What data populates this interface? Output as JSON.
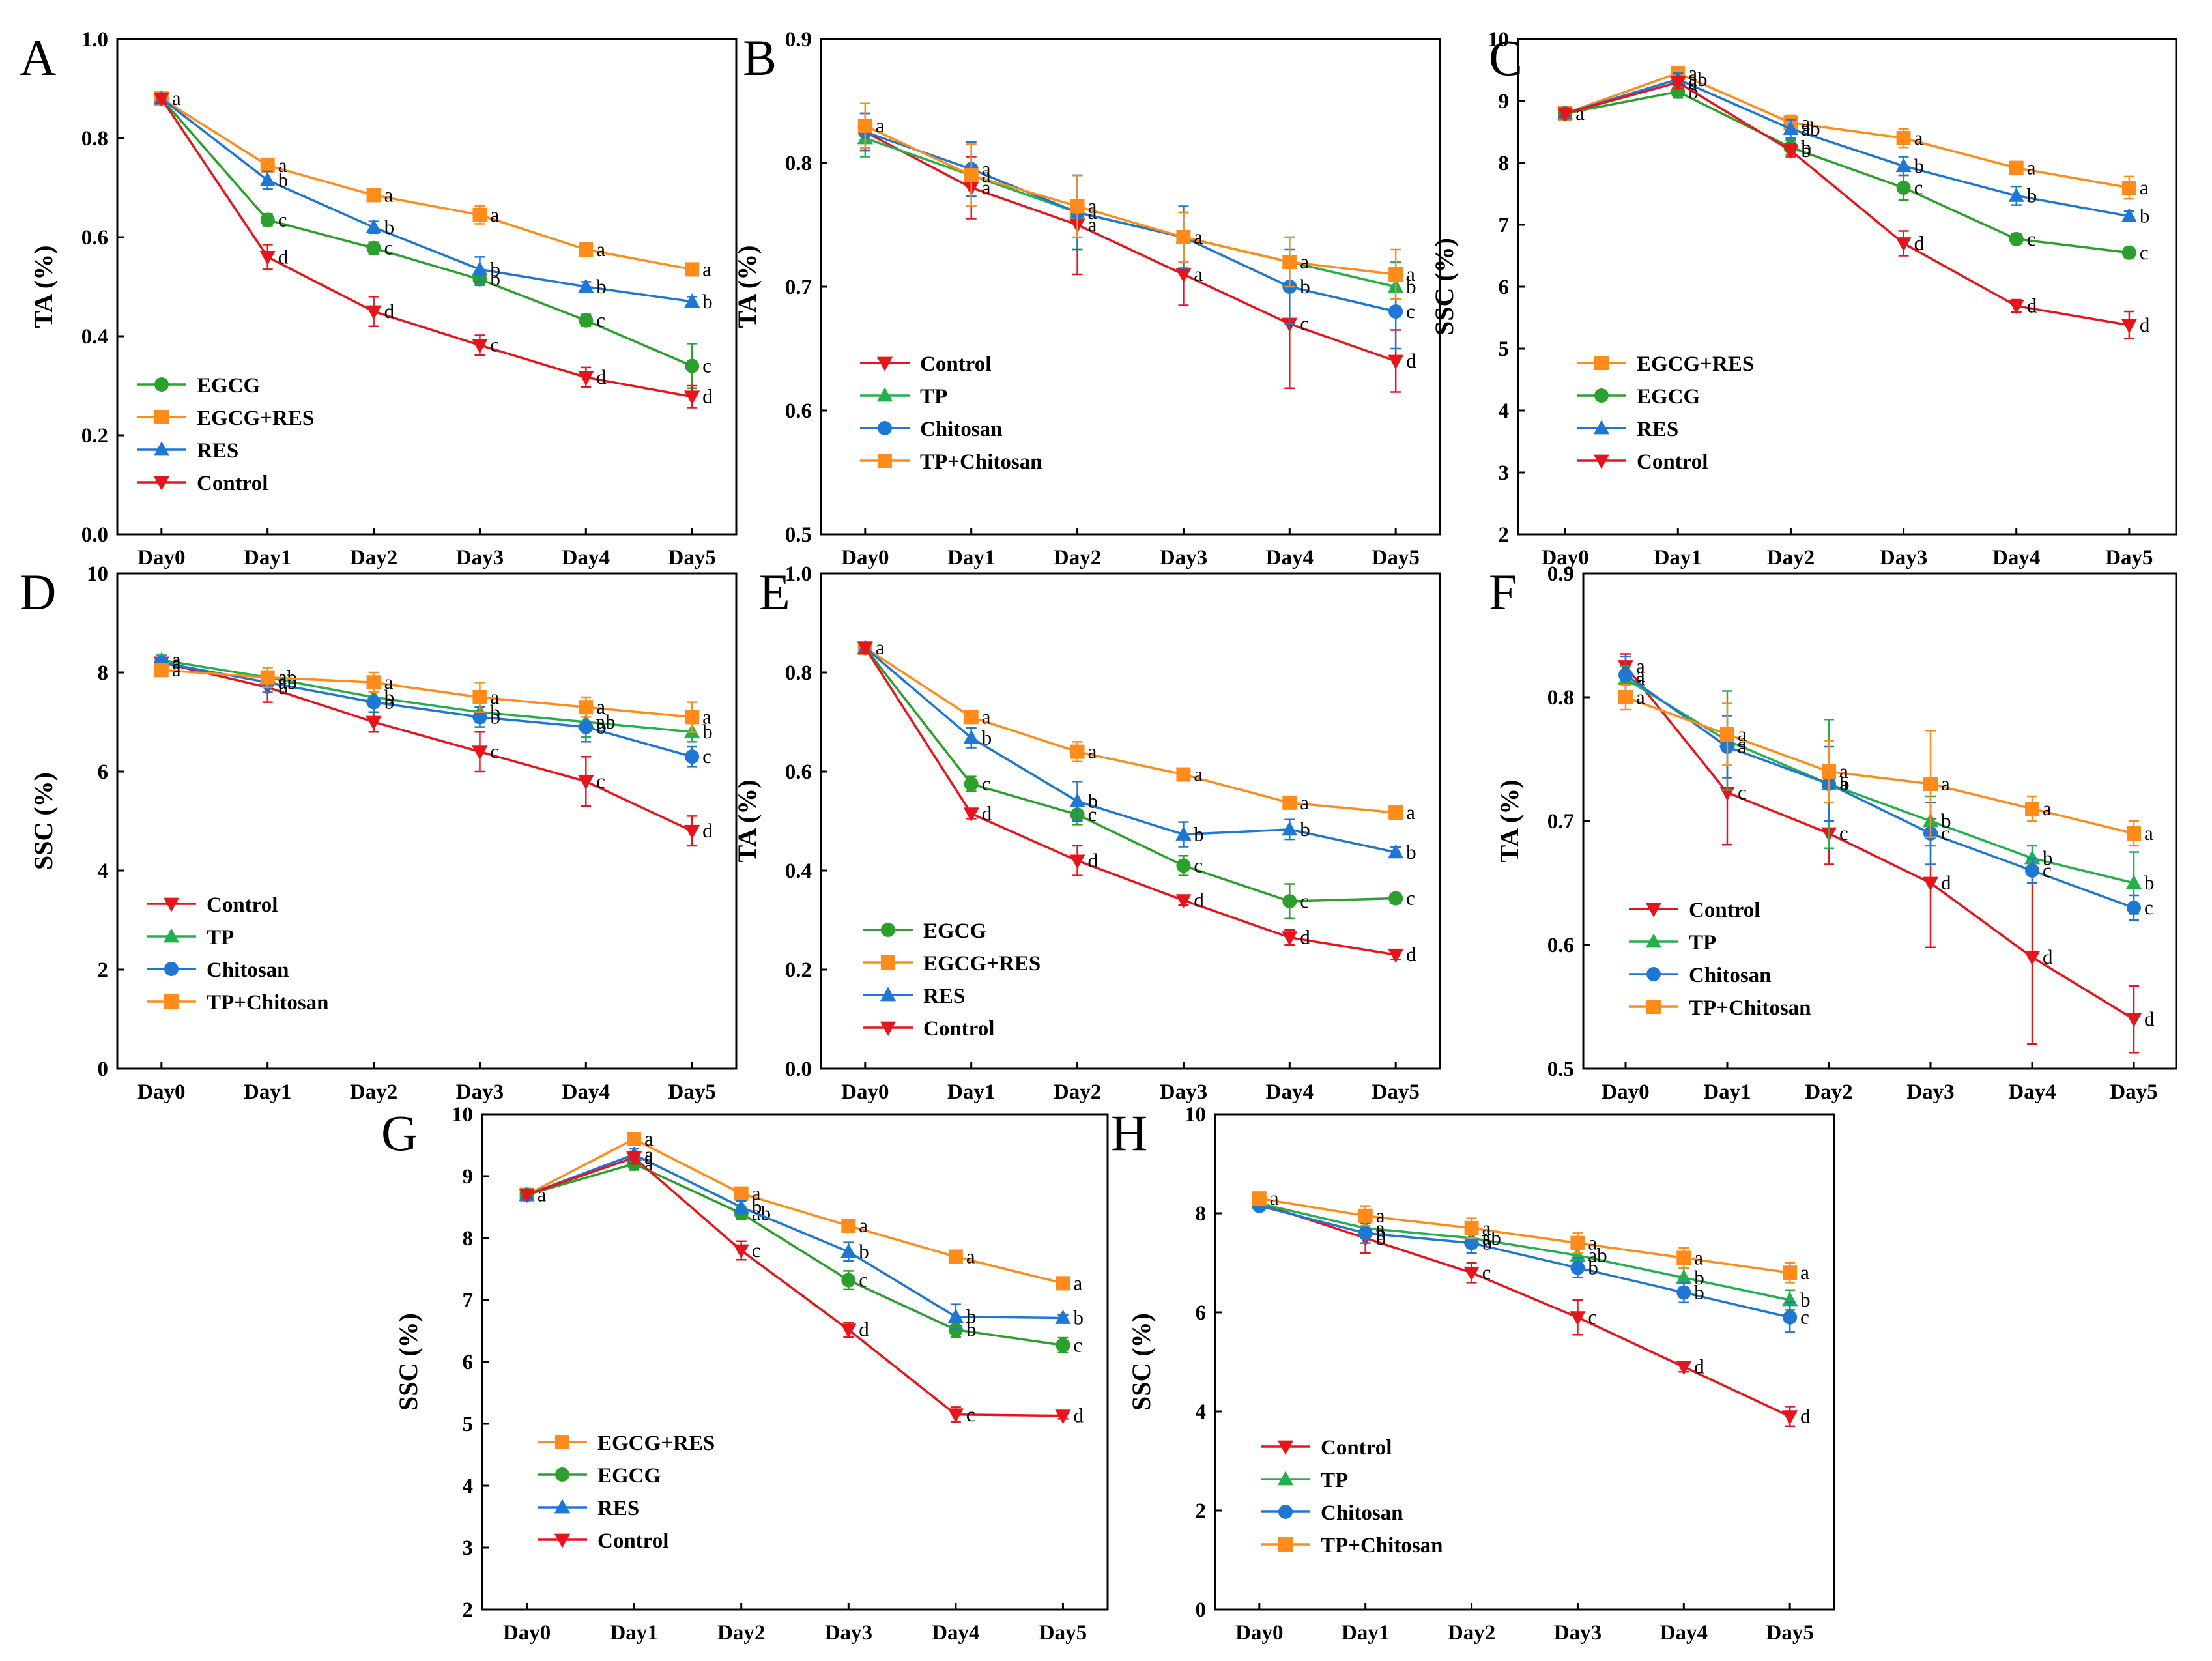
{
  "colors": {
    "EGCG": "#2ca02c",
    "EGCG+RES": "#ff8c1a",
    "RES": "#1f77d4",
    "Control": "#e8141c",
    "TP": "#22b14c",
    "Chitosan": "#1f77d4",
    "TP+Chitosan": "#ff8c1a"
  },
  "markers": {
    "EGCG": "circle",
    "EGCG+RES": "square",
    "RES": "triangle-up",
    "Control": "triangle-down",
    "TP": "triangle-up",
    "Chitosan": "circle",
    "TP+Chitosan": "square"
  },
  "chart_data": [
    {
      "panel": "A",
      "type": "line",
      "categories": [
        "Day0",
        "Day1",
        "Day2",
        "Day3",
        "Day4",
        "Day5"
      ],
      "ylabel": "TA (%)",
      "ylim": [
        0.0,
        1.0
      ],
      "yticks": [
        "0.0",
        "0.2",
        "0.4",
        "0.6",
        "0.8",
        "1.0"
      ],
      "legend_position": "bottom-left",
      "legend": [
        "EGCG",
        "EGCG+RES",
        "RES",
        "Control"
      ],
      "series": [
        {
          "name": "EGCG",
          "values": [
            0.88,
            0.635,
            0.578,
            0.515,
            0.432,
            0.34
          ],
          "errors": [
            0.01,
            0.012,
            0.012,
            0.012,
            0.012,
            0.045
          ],
          "labels": [
            "",
            "c",
            "c",
            "b",
            "c",
            "c"
          ]
        },
        {
          "name": "EGCG+RES",
          "values": [
            0.88,
            0.745,
            0.685,
            0.645,
            0.575,
            0.535
          ],
          "errors": [
            0.01,
            0.01,
            0.012,
            0.018,
            0.01,
            0.01
          ],
          "labels": [
            "a",
            "a",
            "a",
            "a",
            "a",
            "a"
          ]
        },
        {
          "name": "RES",
          "values": [
            0.88,
            0.715,
            0.62,
            0.535,
            0.5,
            0.47
          ],
          "errors": [
            0.01,
            0.018,
            0.012,
            0.025,
            0.01,
            0.01
          ],
          "labels": [
            "",
            "b",
            "b",
            "b",
            "b",
            "b"
          ]
        },
        {
          "name": "Control",
          "values": [
            0.88,
            0.56,
            0.45,
            0.382,
            0.317,
            0.278
          ],
          "errors": [
            0.01,
            0.025,
            0.03,
            0.02,
            0.02,
            0.022
          ],
          "labels": [
            "",
            "d",
            "d",
            "c",
            "d",
            "d"
          ]
        }
      ]
    },
    {
      "panel": "B",
      "type": "line",
      "categories": [
        "Day0",
        "Day1",
        "Day2",
        "Day3",
        "Day4",
        "Day5"
      ],
      "ylabel": "TA (%)",
      "ylim": [
        0.5,
        0.9
      ],
      "yticks": [
        "0.5",
        "0.6",
        "0.7",
        "0.8",
        "0.9"
      ],
      "legend_position": "bottom-left",
      "legend": [
        "Control",
        "TP",
        "Chitosan",
        "TP+Chitosan"
      ],
      "series": [
        {
          "name": "Control",
          "values": [
            0.825,
            0.78,
            0.75,
            0.71,
            0.67,
            0.64
          ],
          "errors": [
            0.015,
            0.025,
            0.04,
            0.025,
            0.052,
            0.025
          ],
          "labels": [
            "",
            "a",
            "a",
            "a",
            "c",
            "d"
          ]
        },
        {
          "name": "TP",
          "values": [
            0.82,
            0.79,
            0.76,
            0.74,
            0.72,
            0.7
          ],
          "errors": [
            0.015,
            0.025,
            0.03,
            0.02,
            0.02,
            0.02
          ],
          "labels": [
            "",
            "a",
            "a",
            "a",
            "a",
            "b"
          ]
        },
        {
          "name": "Chitosan",
          "values": [
            0.825,
            0.795,
            0.76,
            0.74,
            0.7,
            0.68
          ],
          "errors": [
            0.015,
            0.022,
            0.03,
            0.025,
            0.03,
            0.03
          ],
          "labels": [
            "",
            "a",
            "a",
            "a",
            "b",
            "c"
          ]
        },
        {
          "name": "TP+Chitosan",
          "values": [
            0.83,
            0.79,
            0.765,
            0.74,
            0.72,
            0.71
          ],
          "errors": [
            0.018,
            0.025,
            0.025,
            0.02,
            0.02,
            0.02
          ],
          "labels": [
            "a",
            "a",
            "a",
            "a",
            "a",
            "a"
          ]
        }
      ]
    },
    {
      "panel": "C",
      "type": "line",
      "categories": [
        "Day0",
        "Day1",
        "Day2",
        "Day3",
        "Day4",
        "Day5"
      ],
      "ylabel": "SSC (%)",
      "ylim": [
        2,
        10
      ],
      "yticks": [
        "2",
        "3",
        "4",
        "5",
        "6",
        "7",
        "8",
        "9",
        "10"
      ],
      "legend_position": "bottom-left",
      "legend": [
        "EGCG+RES",
        "EGCG",
        "RES",
        "Control"
      ],
      "series": [
        {
          "name": "EGCG+RES",
          "values": [
            8.8,
            9.45,
            8.65,
            8.4,
            7.92,
            7.6
          ],
          "errors": [
            0.05,
            0.08,
            0.12,
            0.15,
            0.1,
            0.18
          ],
          "labels": [
            "",
            "a",
            "a",
            "a",
            "a",
            "a"
          ]
        },
        {
          "name": "EGCG",
          "values": [
            8.8,
            9.15,
            8.25,
            7.6,
            6.77,
            6.55
          ],
          "errors": [
            0.05,
            0.1,
            0.12,
            0.2,
            0.08,
            0.08
          ],
          "labels": [
            "",
            "b",
            "b",
            "c",
            "c",
            "c"
          ]
        },
        {
          "name": "RES",
          "values": [
            8.8,
            9.35,
            8.55,
            7.95,
            7.47,
            7.14
          ],
          "errors": [
            0.05,
            0.1,
            0.15,
            0.15,
            0.15,
            0.08
          ],
          "labels": [
            "",
            "ab",
            "ab",
            "b",
            "b",
            "b"
          ]
        },
        {
          "name": "Control",
          "values": [
            8.8,
            9.3,
            8.2,
            6.7,
            5.69,
            5.38
          ],
          "errors": [
            0.05,
            0.1,
            0.1,
            0.2,
            0.1,
            0.22
          ],
          "labels": [
            "a",
            "a",
            "b",
            "d",
            "d",
            "d"
          ]
        }
      ]
    },
    {
      "panel": "D",
      "type": "line",
      "categories": [
        "Day0",
        "Day1",
        "Day2",
        "Day3",
        "Day4",
        "Day5"
      ],
      "ylabel": "SSC (%)",
      "ylim": [
        0,
        10
      ],
      "yticks": [
        "0",
        "2",
        "4",
        "6",
        "8",
        "10"
      ],
      "legend_position": "bottom-left",
      "legend": [
        "Control",
        "TP",
        "Chitosan",
        "TP+Chitosan"
      ],
      "series": [
        {
          "name": "Control",
          "values": [
            8.2,
            7.7,
            7.0,
            6.4,
            5.8,
            4.8
          ],
          "errors": [
            0.1,
            0.3,
            0.2,
            0.4,
            0.5,
            0.3
          ],
          "labels": [
            "a",
            "b",
            "",
            "c",
            "c",
            "d"
          ]
        },
        {
          "name": "TP",
          "values": [
            8.25,
            7.9,
            7.5,
            7.2,
            7.0,
            6.8
          ],
          "errors": [
            0.1,
            0.2,
            0.2,
            0.2,
            0.3,
            0.2
          ],
          "labels": [
            "a",
            "ab",
            "b",
            "b",
            "ab",
            "b"
          ]
        },
        {
          "name": "Chitosan",
          "values": [
            8.2,
            7.8,
            7.4,
            7.1,
            6.9,
            6.3
          ],
          "errors": [
            0.1,
            0.2,
            0.2,
            0.2,
            0.3,
            0.2
          ],
          "labels": [
            "a",
            "ab",
            "b",
            "b",
            "b",
            "c"
          ]
        },
        {
          "name": "TP+Chitosan",
          "values": [
            8.05,
            7.9,
            7.8,
            7.5,
            7.3,
            7.1
          ],
          "errors": [
            0.1,
            0.2,
            0.2,
            0.3,
            0.2,
            0.3
          ],
          "labels": [
            "a",
            "a",
            "a",
            "a",
            "a",
            "a"
          ]
        }
      ]
    },
    {
      "panel": "E",
      "type": "line",
      "categories": [
        "Day0",
        "Day1",
        "Day2",
        "Day3",
        "Day4",
        "Day5"
      ],
      "ylabel": "TA (%)",
      "ylim": [
        0.0,
        1.0
      ],
      "yticks": [
        "0.0",
        "0.2",
        "0.4",
        "0.6",
        "0.8",
        "1.0"
      ],
      "legend_position": "bottom-left",
      "legend": [
        "EGCG",
        "EGCG+RES",
        "RES",
        "Control"
      ],
      "series": [
        {
          "name": "EGCG",
          "values": [
            0.85,
            0.575,
            0.513,
            0.41,
            0.338,
            0.344
          ],
          "errors": [
            0.01,
            0.015,
            0.02,
            0.02,
            0.035,
            0.01
          ],
          "labels": [
            "",
            "c",
            "c",
            "c",
            "c",
            "c"
          ]
        },
        {
          "name": "EGCG+RES",
          "values": [
            0.85,
            0.71,
            0.64,
            0.594,
            0.537,
            0.517
          ],
          "errors": [
            0.01,
            0.01,
            0.02,
            0.01,
            0.01,
            0.01
          ],
          "labels": [
            "",
            "a",
            "a",
            "a",
            "a",
            "a"
          ]
        },
        {
          "name": "RES",
          "values": [
            0.85,
            0.668,
            0.54,
            0.473,
            0.483,
            0.437
          ],
          "errors": [
            0.01,
            0.02,
            0.04,
            0.025,
            0.02,
            0.01
          ],
          "labels": [
            "",
            "b",
            "b",
            "b",
            "b",
            "b"
          ]
        },
        {
          "name": "Control",
          "values": [
            0.85,
            0.515,
            0.42,
            0.34,
            0.265,
            0.23
          ],
          "errors": [
            0.01,
            0.01,
            0.03,
            0.01,
            0.015,
            0.01
          ],
          "labels": [
            "a",
            "d",
            "d",
            "d",
            "d",
            "d"
          ]
        }
      ]
    },
    {
      "panel": "F",
      "type": "line",
      "categories": [
        "Day0",
        "Day1",
        "Day2",
        "Day3",
        "Day4",
        "Day5"
      ],
      "ylabel": "TA (%)",
      "ylim": [
        0.5,
        0.9
      ],
      "yticks": [
        "0.5",
        "0.6",
        "0.7",
        "0.8",
        "0.9"
      ],
      "legend_position": "bottom-left",
      "legend": [
        "Control",
        "TP",
        "Chitosan",
        "TP+Chitosan"
      ],
      "series": [
        {
          "name": "Control",
          "values": [
            0.825,
            0.723,
            0.69,
            0.65,
            0.59,
            0.54
          ],
          "errors": [
            0.01,
            0.042,
            0.025,
            0.052,
            0.07,
            0.027
          ],
          "labels": [
            "a",
            "c",
            "c",
            "d",
            "d",
            "d"
          ]
        },
        {
          "name": "TP",
          "values": [
            0.815,
            0.765,
            0.73,
            0.7,
            0.67,
            0.65
          ],
          "errors": [
            0.01,
            0.04,
            0.052,
            0.02,
            0.01,
            0.025
          ],
          "labels": [
            "a",
            "a",
            "a",
            "b",
            "b",
            "b"
          ]
        },
        {
          "name": "Chitosan",
          "values": [
            0.818,
            0.76,
            0.73,
            0.69,
            0.66,
            0.63
          ],
          "errors": [
            0.015,
            0.025,
            0.03,
            0.025,
            0.01,
            0.01
          ],
          "labels": [
            "a",
            "a",
            "b",
            "c",
            "c",
            "c"
          ]
        },
        {
          "name": "TP+Chitosan",
          "values": [
            0.8,
            0.77,
            0.74,
            0.73,
            0.71,
            0.69
          ],
          "errors": [
            0.01,
            0.025,
            0.025,
            0.043,
            0.01,
            0.01
          ],
          "labels": [
            "a",
            "a",
            "a",
            "a",
            "a",
            "a"
          ]
        }
      ]
    },
    {
      "panel": "G",
      "type": "line",
      "categories": [
        "Day0",
        "Day1",
        "Day2",
        "Day3",
        "Day4",
        "Day5"
      ],
      "ylabel": "SSC (%)",
      "ylim": [
        2,
        10
      ],
      "yticks": [
        "2",
        "3",
        "4",
        "5",
        "6",
        "7",
        "8",
        "9",
        "10"
      ],
      "legend_position": "bottom-left",
      "legend": [
        "EGCG+RES",
        "EGCG",
        "RES",
        "Control"
      ],
      "series": [
        {
          "name": "EGCG+RES",
          "values": [
            8.7,
            9.6,
            8.72,
            8.2,
            7.7,
            7.27
          ],
          "errors": [
            0.05,
            0.1,
            0.1,
            0.08,
            0.08,
            0.08
          ],
          "labels": [
            "a",
            "a",
            "a",
            "a",
            "a",
            "a"
          ]
        },
        {
          "name": "EGCG",
          "values": [
            8.7,
            9.2,
            8.4,
            7.32,
            6.52,
            6.27
          ],
          "errors": [
            0.05,
            0.1,
            0.1,
            0.15,
            0.12,
            0.12
          ],
          "labels": [
            "",
            "a",
            "ab",
            "c",
            "b",
            "c"
          ]
        },
        {
          "name": "RES",
          "values": [
            8.7,
            9.35,
            8.5,
            7.78,
            6.73,
            6.71
          ],
          "errors": [
            0.05,
            0.1,
            0.1,
            0.15,
            0.2,
            0.05
          ],
          "labels": [
            "",
            "a",
            "b",
            "b",
            "b",
            "b"
          ]
        },
        {
          "name": "Control",
          "values": [
            8.7,
            9.3,
            7.8,
            6.52,
            5.15,
            5.13
          ],
          "errors": [
            0.05,
            0.1,
            0.15,
            0.12,
            0.12,
            0.05
          ],
          "labels": [
            "",
            "a",
            "c",
            "d",
            "c",
            "d"
          ]
        }
      ]
    },
    {
      "panel": "H",
      "type": "line",
      "categories": [
        "Day0",
        "Day1",
        "Day2",
        "Day3",
        "Day4",
        "Day5"
      ],
      "ylabel": "SSC (%)",
      "ylim": [
        0,
        10
      ],
      "yticks": [
        "0",
        "2",
        "4",
        "6",
        "8",
        "10"
      ],
      "legend_position": "bottom-left",
      "legend": [
        "Control",
        "TP",
        "Chitosan",
        "TP+Chitosan"
      ],
      "series": [
        {
          "name": "Control",
          "values": [
            8.2,
            7.5,
            6.8,
            5.9,
            4.9,
            3.9
          ],
          "errors": [
            0.1,
            0.3,
            0.2,
            0.35,
            0.1,
            0.2
          ],
          "labels": [
            "",
            "b",
            "c",
            "c",
            "d",
            "d"
          ]
        },
        {
          "name": "TP",
          "values": [
            8.2,
            7.7,
            7.5,
            7.15,
            6.7,
            6.25
          ],
          "errors": [
            0.1,
            0.2,
            0.2,
            0.2,
            0.2,
            0.2
          ],
          "labels": [
            "",
            "a",
            "ab",
            "ab",
            "b",
            "b"
          ]
        },
        {
          "name": "Chitosan",
          "values": [
            8.15,
            7.6,
            7.4,
            6.9,
            6.4,
            5.9
          ],
          "errors": [
            0.1,
            0.2,
            0.2,
            0.2,
            0.2,
            0.3
          ],
          "labels": [
            "",
            "b",
            "b",
            "b",
            "b",
            "c"
          ]
        },
        {
          "name": "TP+Chitosan",
          "values": [
            8.3,
            7.95,
            7.7,
            7.4,
            7.1,
            6.8
          ],
          "errors": [
            0.1,
            0.2,
            0.2,
            0.2,
            0.2,
            0.2
          ],
          "labels": [
            "a",
            "a",
            "a",
            "a",
            "a",
            "a"
          ]
        }
      ]
    }
  ]
}
